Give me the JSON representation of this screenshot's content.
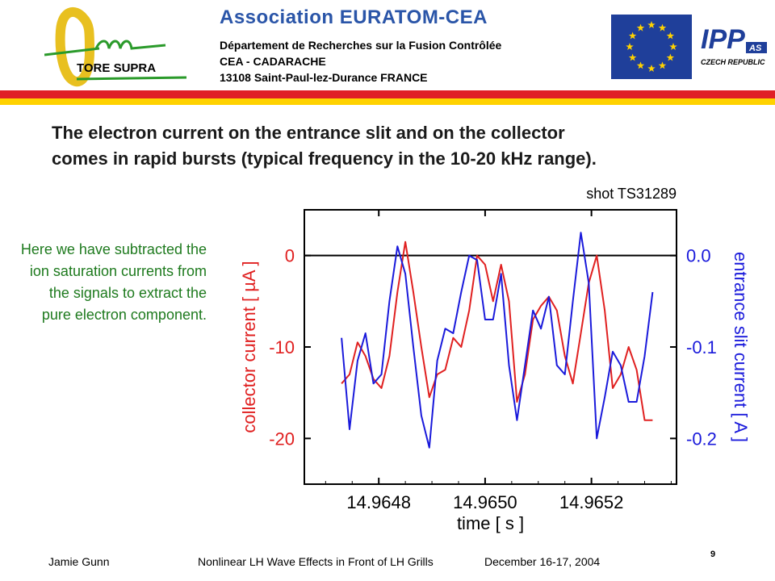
{
  "header": {
    "association": "Association EURATOM-CEA",
    "dept_line1": "Département de Recherches sur la Fusion Contrôlée",
    "dept_line2": "CEA - CADARACHE",
    "dept_line3": "13108 Saint-Paul-lez-Durance   FRANCE",
    "logo_text": "TORE SUPRA",
    "ipp_text": "IPP",
    "ipp_sub": "AS",
    "ipp_caption": "CZECH REPUBLIC"
  },
  "headline": {
    "line1": "The electron current on the entrance slit and on the collector",
    "line2": "comes in rapid bursts (typical frequency in the 10-20 kHz range)."
  },
  "side_note": "Here we have subtracted the ion saturation currents from the signals to extract the pure electron component.",
  "footer": {
    "author": "Jamie Gunn",
    "talk": "Nonlinear LH Wave Effects in Front of LH Grills",
    "date": "December 16-17, 2004",
    "page": "9"
  },
  "colors": {
    "collector": "#e02020",
    "entrance": "#1a1adb",
    "note_green": "#1e7a1e",
    "stripe_red": "#e01f26",
    "stripe_yellow": "#ffd200",
    "association_blue": "#2a55a8"
  },
  "chart_data": {
    "type": "line",
    "title": "shot TS31289",
    "xlabel": "time   [ s ]",
    "ylabel_left": "collector current   [ µA ]",
    "ylabel_right": "entrance slit current [ A ]",
    "xlim": [
      14.96466,
      14.96536
    ],
    "ylim_left": [
      -25,
      5
    ],
    "ylim_right": [
      -0.25,
      0.05
    ],
    "x_ticks": [
      14.9648,
      14.965,
      14.9652
    ],
    "x_tick_labels": [
      "14.9648",
      "14.9650",
      "14.9652"
    ],
    "y_left_ticks": [
      0,
      -10,
      -20
    ],
    "y_left_tick_labels": [
      "0",
      "-10",
      "-20"
    ],
    "y_right_ticks": [
      0.0,
      -0.1,
      -0.2
    ],
    "y_right_tick_labels": [
      "0.0",
      "-0.1",
      "-0.2"
    ],
    "zero_line": true,
    "grid": false,
    "series": [
      {
        "axis": "left",
        "color": "#e02020",
        "x": [
          14.96473,
          14.964745,
          14.96476,
          14.964775,
          14.96479,
          14.964805,
          14.96482,
          14.964835,
          14.96485,
          14.964865,
          14.96488,
          14.964895,
          14.96491,
          14.964925,
          14.96494,
          14.964955,
          14.96497,
          14.964985,
          14.965,
          14.965015,
          14.96503,
          14.965045,
          14.96506,
          14.965075,
          14.96509,
          14.965105,
          14.96512,
          14.965135,
          14.96515,
          14.965165,
          14.96518,
          14.965195,
          14.96521,
          14.965225,
          14.96524,
          14.965255,
          14.96527,
          14.965285,
          14.9653,
          14.965315
        ],
        "y": [
          -14,
          -13,
          -9.5,
          -11,
          -13.5,
          -14.5,
          -11,
          -4,
          1.5,
          -4,
          -10,
          -15.5,
          -13,
          -12.5,
          -9,
          -10,
          -6,
          0,
          -1,
          -5,
          -1,
          -5,
          -16,
          -13,
          -7,
          -5.5,
          -4.5,
          -6,
          -11,
          -14,
          -8.5,
          -3,
          0,
          -6,
          -14.5,
          -13,
          -10,
          -12.5,
          -18,
          -18
        ]
      },
      {
        "axis": "right",
        "color": "#1a1adb",
        "x": [
          14.96473,
          14.964745,
          14.96476,
          14.964775,
          14.96479,
          14.964805,
          14.96482,
          14.964835,
          14.96485,
          14.964865,
          14.96488,
          14.964895,
          14.96491,
          14.964925,
          14.96494,
          14.964955,
          14.96497,
          14.964985,
          14.965,
          14.965015,
          14.96503,
          14.965045,
          14.96506,
          14.965075,
          14.96509,
          14.965105,
          14.96512,
          14.965135,
          14.96515,
          14.965165,
          14.96518,
          14.965195,
          14.96521,
          14.965225,
          14.96524,
          14.965255,
          14.96527,
          14.965285,
          14.9653,
          14.965315
        ],
        "y": [
          -0.09,
          -0.19,
          -0.115,
          -0.085,
          -0.14,
          -0.13,
          -0.05,
          0.01,
          -0.02,
          -0.1,
          -0.175,
          -0.21,
          -0.115,
          -0.08,
          -0.085,
          -0.04,
          0.0,
          -0.005,
          -0.07,
          -0.07,
          -0.02,
          -0.12,
          -0.18,
          -0.12,
          -0.06,
          -0.08,
          -0.045,
          -0.12,
          -0.13,
          -0.05,
          0.025,
          -0.03,
          -0.2,
          -0.155,
          -0.105,
          -0.12,
          -0.16,
          -0.16,
          -0.11,
          -0.04
        ]
      }
    ]
  }
}
